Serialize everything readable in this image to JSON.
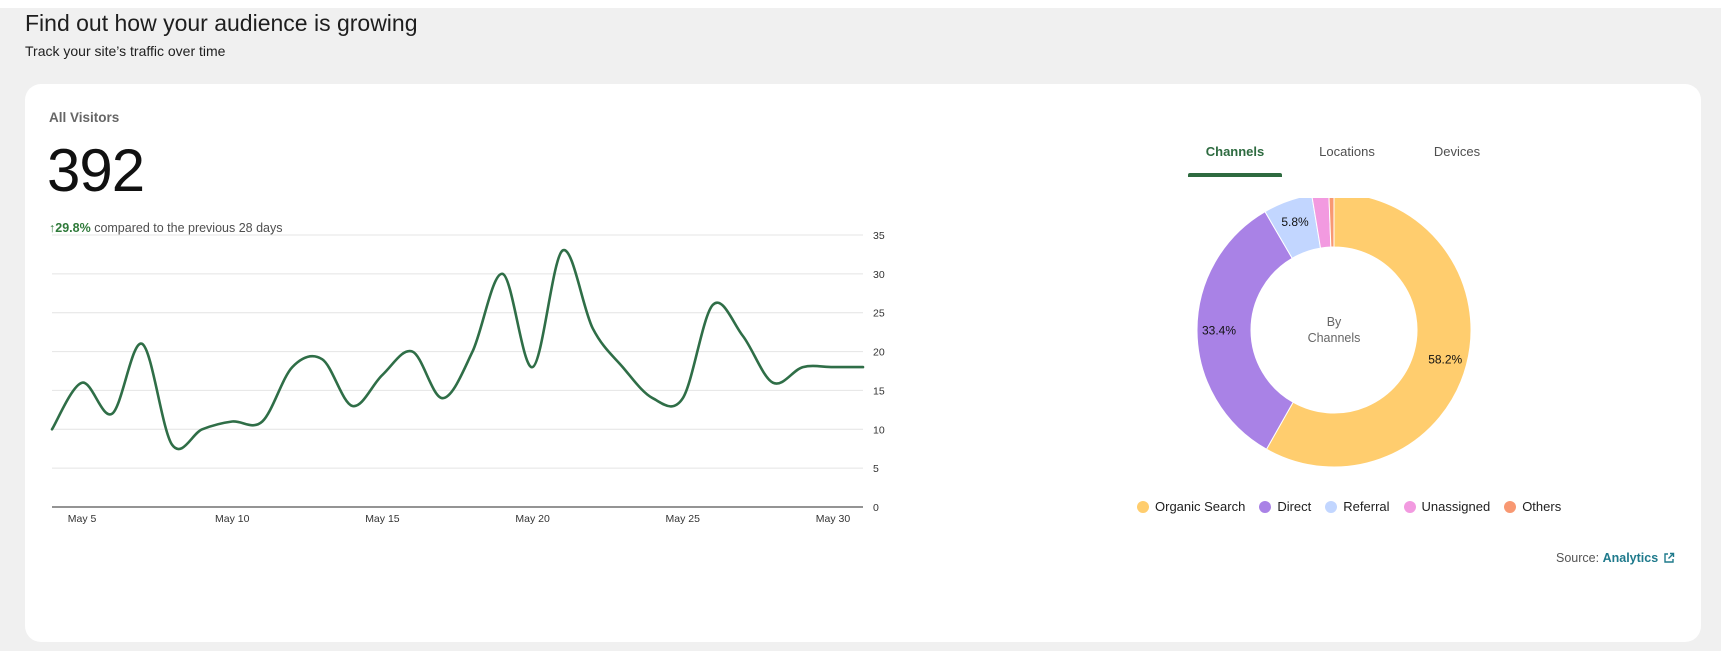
{
  "header": {
    "title": "Find out how your audience is growing",
    "subtitle": "Track your site’s traffic over time"
  },
  "summary": {
    "label": "All Visitors",
    "value": "392",
    "change_arrow": "↑",
    "change_pct": "29.8%",
    "change_text": "compared to the previous 28 days"
  },
  "tabs": [
    {
      "label": "Channels",
      "active": true
    },
    {
      "label": "Locations",
      "active": false
    },
    {
      "label": "Devices",
      "active": false
    }
  ],
  "donut": {
    "center_line1": "By",
    "center_line2": "Channels"
  },
  "legend": [
    {
      "label": "Organic Search",
      "color": "#ffcd6e"
    },
    {
      "label": "Direct",
      "color": "#a982e6"
    },
    {
      "label": "Referral",
      "color": "#c2d6ff"
    },
    {
      "label": "Unassigned",
      "color": "#f29ae0"
    },
    {
      "label": "Others",
      "color": "#f89872"
    }
  ],
  "source": {
    "prefix": "Source:",
    "link": "Analytics",
    "icon": "external-link-icon"
  },
  "colors": {
    "accent": "#2e6b40",
    "line": "#2f6e47",
    "positive": "#2f7a3a",
    "link": "#1f7a8c"
  },
  "chart_data": [
    {
      "type": "line",
      "title": "",
      "xlabel": "",
      "ylabel": "",
      "x_tick_labels": [
        "May 5",
        "May 10",
        "May 15",
        "May 20",
        "May 25",
        "May 30"
      ],
      "x_tick_days": [
        5,
        10,
        15,
        20,
        25,
        30
      ],
      "y_ticks": [
        0,
        5,
        10,
        15,
        20,
        25,
        30,
        35
      ],
      "ylim": [
        0,
        35
      ],
      "xlim": [
        4,
        31
      ],
      "grid": true,
      "series": [
        {
          "x": [
            4,
            5,
            6,
            7,
            8,
            9,
            10,
            11,
            12,
            13,
            14,
            15,
            16,
            17,
            18,
            19,
            20,
            21,
            22,
            23,
            24,
            25,
            26,
            27,
            28,
            29,
            30,
            31
          ],
          "values": [
            10,
            16,
            12,
            21,
            8,
            10,
            11,
            11,
            18,
            19,
            13,
            17,
            20,
            14,
            20,
            30,
            18,
            33,
            23,
            18,
            14,
            14,
            26,
            22,
            16,
            18,
            18,
            18
          ]
        }
      ]
    },
    {
      "type": "pie",
      "title": "",
      "categories": [
        "Organic Search",
        "Direct",
        "Referral",
        "Unassigned",
        "Others"
      ],
      "values": [
        58.2,
        33.4,
        5.8,
        2.0,
        0.6
      ],
      "value_labels": [
        "58.2%",
        "33.4%",
        "5.8%",
        "",
        ""
      ]
    }
  ]
}
